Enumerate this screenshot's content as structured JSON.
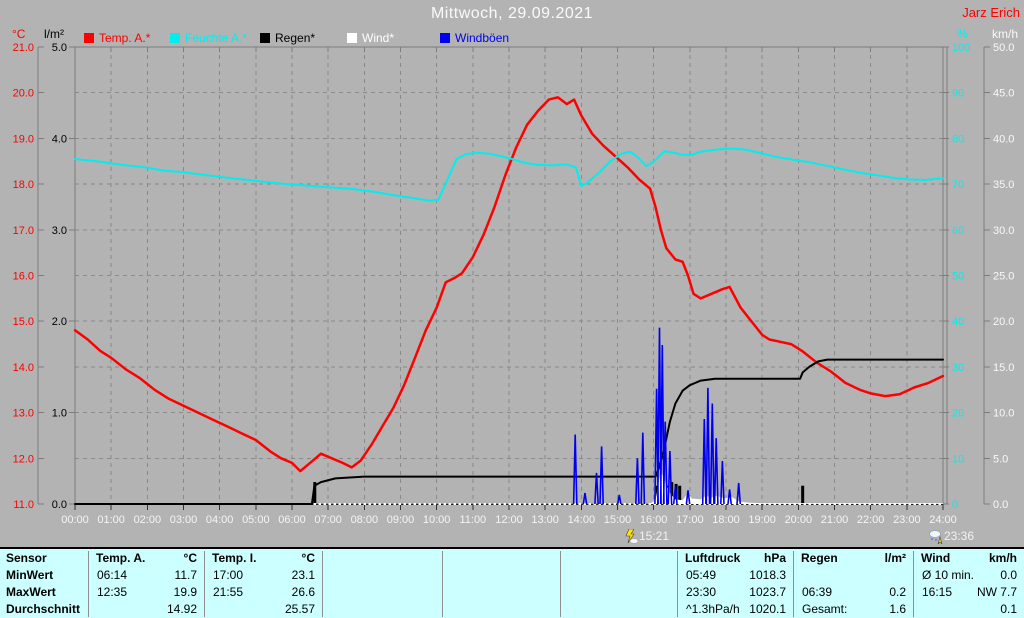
{
  "header": {
    "title": "Mittwoch, 29.09.2021",
    "author": "Jarz Erich"
  },
  "legend": {
    "left_units": [
      {
        "text": "°C",
        "color": "#ff0000"
      },
      {
        "text": "l/m²",
        "color": "#000000"
      }
    ],
    "right_units": [
      {
        "text": "%",
        "color": "#00eeee"
      },
      {
        "text": "km/h",
        "color": "#f8f8f8"
      }
    ],
    "items": [
      {
        "label": "Temp. A.*",
        "color": "#ff0000"
      },
      {
        "label": "Feuchte A.*",
        "color": "#00eeee"
      },
      {
        "label": "Regen*",
        "color": "#000000"
      },
      {
        "label": "Wind*",
        "color": "#ffffff"
      },
      {
        "label": "Windböen",
        "color": "#0000ee"
      }
    ]
  },
  "chart_data": {
    "type": "line",
    "title": "Mittwoch, 29.09.2021",
    "grid": true,
    "x_axis": {
      "unit": "hour",
      "min": 0,
      "max": 24,
      "tick_step": 1,
      "labels": [
        "00:00",
        "01:00",
        "02:00",
        "03:00",
        "04:00",
        "05:00",
        "06:00",
        "07:00",
        "08:00",
        "09:00",
        "10:00",
        "11:00",
        "12:00",
        "13:00",
        "14:00",
        "15:00",
        "16:00",
        "17:00",
        "18:00",
        "19:00",
        "20:00",
        "21:00",
        "22:00",
        "23:00",
        "24:00"
      ]
    },
    "y_axes": [
      {
        "id": "temp",
        "unit": "°C",
        "color": "#ff0000",
        "min": 11,
        "max": 21,
        "tick_step": 1,
        "side": "left"
      },
      {
        "id": "rain",
        "unit": "l/m²",
        "color": "#000000",
        "min": 0,
        "max": 5,
        "tick_step": 1,
        "side": "left"
      },
      {
        "id": "humidity",
        "unit": "%",
        "color": "#00eeee",
        "min": 0,
        "max": 100,
        "tick_step": 10,
        "side": "right"
      },
      {
        "id": "wind",
        "unit": "km/h",
        "color": "#f8f8f8",
        "min": 0,
        "max": 50,
        "tick_step": 5,
        "side": "right"
      }
    ],
    "series": [
      {
        "name": "Temp. A.*",
        "axis": "temp",
        "color": "#ff0000",
        "type": "line",
        "width": 2.5,
        "points": [
          [
            0,
            14.8
          ],
          [
            0.35,
            14.6
          ],
          [
            0.7,
            14.35
          ],
          [
            1,
            14.2
          ],
          [
            1.4,
            13.95
          ],
          [
            1.8,
            13.75
          ],
          [
            2.2,
            13.5
          ],
          [
            2.6,
            13.3
          ],
          [
            3,
            13.15
          ],
          [
            3.4,
            13.0
          ],
          [
            3.8,
            12.85
          ],
          [
            4.2,
            12.7
          ],
          [
            4.6,
            12.55
          ],
          [
            5,
            12.4
          ],
          [
            5.4,
            12.15
          ],
          [
            5.7,
            12.0
          ],
          [
            6,
            11.9
          ],
          [
            6.23,
            11.72
          ],
          [
            6.5,
            11.9
          ],
          [
            6.8,
            12.1
          ],
          [
            7.1,
            12.0
          ],
          [
            7.4,
            11.9
          ],
          [
            7.65,
            11.8
          ],
          [
            7.9,
            11.95
          ],
          [
            8.2,
            12.3
          ],
          [
            8.5,
            12.7
          ],
          [
            8.8,
            13.1
          ],
          [
            9.1,
            13.6
          ],
          [
            9.4,
            14.2
          ],
          [
            9.7,
            14.8
          ],
          [
            10,
            15.3
          ],
          [
            10.25,
            15.85
          ],
          [
            10.5,
            15.95
          ],
          [
            10.7,
            16.05
          ],
          [
            11,
            16.4
          ],
          [
            11.3,
            16.9
          ],
          [
            11.6,
            17.5
          ],
          [
            11.9,
            18.2
          ],
          [
            12.2,
            18.8
          ],
          [
            12.5,
            19.3
          ],
          [
            12.8,
            19.6
          ],
          [
            13.1,
            19.85
          ],
          [
            13.35,
            19.9
          ],
          [
            13.6,
            19.75
          ],
          [
            13.8,
            19.85
          ],
          [
            14,
            19.5
          ],
          [
            14.3,
            19.1
          ],
          [
            14.6,
            18.85
          ],
          [
            14.95,
            18.6
          ],
          [
            15.3,
            18.35
          ],
          [
            15.6,
            18.1
          ],
          [
            15.9,
            17.9
          ],
          [
            16.05,
            17.5
          ],
          [
            16.2,
            17.0
          ],
          [
            16.35,
            16.6
          ],
          [
            16.6,
            16.35
          ],
          [
            16.8,
            16.3
          ],
          [
            16.95,
            16.0
          ],
          [
            17.1,
            15.6
          ],
          [
            17.3,
            15.5
          ],
          [
            17.6,
            15.6
          ],
          [
            17.9,
            15.7
          ],
          [
            18.1,
            15.75
          ],
          [
            18.4,
            15.3
          ],
          [
            18.7,
            15.0
          ],
          [
            19,
            14.7
          ],
          [
            19.2,
            14.6
          ],
          [
            19.5,
            14.55
          ],
          [
            19.8,
            14.5
          ],
          [
            20.1,
            14.35
          ],
          [
            20.5,
            14.1
          ],
          [
            20.9,
            13.9
          ],
          [
            21.3,
            13.65
          ],
          [
            21.7,
            13.5
          ],
          [
            22,
            13.42
          ],
          [
            22.4,
            13.36
          ],
          [
            22.8,
            13.4
          ],
          [
            23.2,
            13.55
          ],
          [
            23.6,
            13.65
          ],
          [
            24,
            13.8
          ]
        ]
      },
      {
        "name": "Feuchte A.*",
        "axis": "humidity",
        "color": "#00eeee",
        "type": "line",
        "width": 2,
        "points": [
          [
            0,
            75.5
          ],
          [
            0.6,
            75.0
          ],
          [
            1.2,
            74.3
          ],
          [
            2,
            73.6
          ],
          [
            2.4,
            73.0
          ],
          [
            3,
            72.6
          ],
          [
            3.6,
            72.0
          ],
          [
            4.2,
            71.4
          ],
          [
            5,
            70.7
          ],
          [
            5.6,
            70.2
          ],
          [
            6.2,
            69.8
          ],
          [
            7,
            69.3
          ],
          [
            7.6,
            69.0
          ],
          [
            8.2,
            68.4
          ],
          [
            8.8,
            67.6
          ],
          [
            9.3,
            67.0
          ],
          [
            9.8,
            66.4
          ],
          [
            10.05,
            66.6
          ],
          [
            10.3,
            71.0
          ],
          [
            10.55,
            75.5
          ],
          [
            10.8,
            76.5
          ],
          [
            11.1,
            76.9
          ],
          [
            11.5,
            76.6
          ],
          [
            12,
            75.7
          ],
          [
            12.4,
            74.7
          ],
          [
            12.8,
            74.2
          ],
          [
            13.2,
            74.1
          ],
          [
            13.6,
            74.3
          ],
          [
            13.85,
            73.6
          ],
          [
            14.0,
            69.6
          ],
          [
            14.15,
            70.2
          ],
          [
            14.5,
            72.6
          ],
          [
            14.8,
            75.0
          ],
          [
            15.1,
            76.6
          ],
          [
            15.35,
            77.1
          ],
          [
            15.6,
            75.6
          ],
          [
            15.8,
            73.9
          ],
          [
            16.05,
            75.3
          ],
          [
            16.3,
            77.2
          ],
          [
            16.55,
            76.9
          ],
          [
            16.8,
            76.4
          ],
          [
            17.05,
            76.4
          ],
          [
            17.3,
            77.1
          ],
          [
            17.7,
            77.5
          ],
          [
            18.1,
            77.8
          ],
          [
            18.5,
            77.6
          ],
          [
            18.9,
            76.9
          ],
          [
            19.3,
            76.1
          ],
          [
            19.8,
            75.4
          ],
          [
            20.3,
            74.8
          ],
          [
            20.8,
            74.0
          ],
          [
            21.2,
            73.3
          ],
          [
            21.7,
            72.5
          ],
          [
            22.2,
            71.9
          ],
          [
            22.7,
            71.3
          ],
          [
            23.1,
            71.0
          ],
          [
            23.5,
            70.9
          ],
          [
            24,
            71.3
          ]
        ]
      },
      {
        "name": "Regen* kumuliert",
        "axis": "rain",
        "color": "#000000",
        "type": "line",
        "width": 2,
        "points": [
          [
            0,
            0
          ],
          [
            6.55,
            0
          ],
          [
            6.62,
            0.2
          ],
          [
            6.8,
            0.24
          ],
          [
            7.2,
            0.28
          ],
          [
            8,
            0.3
          ],
          [
            16.05,
            0.3
          ],
          [
            16.15,
            0.4
          ],
          [
            16.3,
            0.62
          ],
          [
            16.45,
            0.9
          ],
          [
            16.6,
            1.1
          ],
          [
            16.8,
            1.24
          ],
          [
            17,
            1.3
          ],
          [
            17.3,
            1.35
          ],
          [
            17.7,
            1.37
          ],
          [
            20.05,
            1.37
          ],
          [
            20.12,
            1.44
          ],
          [
            20.3,
            1.5
          ],
          [
            20.55,
            1.56
          ],
          [
            20.8,
            1.58
          ],
          [
            24,
            1.58
          ]
        ]
      },
      {
        "name": "Regen* Ereignisse",
        "axis": "rain",
        "color": "#000000",
        "type": "bars",
        "points": [
          [
            6.63,
            0.24
          ],
          [
            16.1,
            0.2
          ],
          [
            16.17,
            0.22
          ],
          [
            16.24,
            0.2
          ],
          [
            16.31,
            0.22
          ],
          [
            16.38,
            0.2
          ],
          [
            16.5,
            0.24
          ],
          [
            16.62,
            0.22
          ],
          [
            16.72,
            0.2
          ],
          [
            20.12,
            0.2
          ]
        ]
      },
      {
        "name": "Wind*",
        "axis": "wind",
        "color": "#ffffff",
        "type": "area",
        "start_hour": 6.6,
        "points": [
          [
            6.6,
            0.05
          ],
          [
            15.9,
            0.05
          ],
          [
            16.05,
            0.4
          ],
          [
            16.13,
            2.2
          ],
          [
            16.2,
            3.6
          ],
          [
            16.3,
            2.6
          ],
          [
            16.45,
            1.2
          ],
          [
            16.6,
            0.5
          ],
          [
            16.8,
            0.4
          ],
          [
            16.95,
            1.2
          ],
          [
            17.05,
            0.6
          ],
          [
            17.3,
            0.5
          ],
          [
            17.45,
            0.9
          ],
          [
            17.6,
            0.7
          ],
          [
            17.75,
            0.9
          ],
          [
            17.95,
            0.6
          ],
          [
            18.15,
            0.8
          ],
          [
            18.35,
            0.3
          ],
          [
            18.6,
            0.15
          ],
          [
            19,
            0.1
          ],
          [
            24,
            0.1
          ]
        ]
      },
      {
        "name": "Windböen",
        "axis": "wind",
        "color": "#0000ee",
        "type": "spikes",
        "width": 1.6,
        "points": [
          [
            13.83,
            7.6
          ],
          [
            14.1,
            1.2
          ],
          [
            14.42,
            3.4
          ],
          [
            14.56,
            6.3
          ],
          [
            15.05,
            1.0
          ],
          [
            15.55,
            5.0
          ],
          [
            15.7,
            7.8
          ],
          [
            16.08,
            12.6
          ],
          [
            16.16,
            19.3
          ],
          [
            16.24,
            17.4
          ],
          [
            16.32,
            9.0
          ],
          [
            16.45,
            5.8
          ],
          [
            16.6,
            2.0
          ],
          [
            16.95,
            1.5
          ],
          [
            17.4,
            9.3
          ],
          [
            17.5,
            12.7
          ],
          [
            17.62,
            11.0
          ],
          [
            17.73,
            7.2
          ],
          [
            17.9,
            4.7
          ],
          [
            18.1,
            1.6
          ],
          [
            18.35,
            2.3
          ]
        ]
      }
    ],
    "event_markers": [
      {
        "time": "15:21",
        "hour": 15.35,
        "icon": "lightning-rain"
      },
      {
        "time": "23:36",
        "hour": 23.6,
        "icon": "rain-cloud"
      }
    ]
  },
  "table": {
    "row_labels": [
      "Sensor",
      "MinWert",
      "MaxWert",
      "Durchschnitt"
    ],
    "groups": [
      {
        "name": "Temp. A.",
        "unit": "°C",
        "rows": [
          [
            "06:14",
            "11.7"
          ],
          [
            "12:35",
            "19.9"
          ],
          [
            "",
            "14.92"
          ]
        ]
      },
      {
        "name": "Temp. I.",
        "unit": "°C",
        "rows": [
          [
            "17:00",
            "23.1"
          ],
          [
            "21:55",
            "26.6"
          ],
          [
            "",
            "25.57"
          ]
        ]
      },
      {
        "name": "",
        "unit": "",
        "rows": [
          [
            "",
            ""
          ],
          [
            "",
            ""
          ],
          [
            "",
            ""
          ]
        ]
      },
      {
        "name": "",
        "unit": "",
        "rows": [
          [
            "",
            ""
          ],
          [
            "",
            ""
          ],
          [
            "",
            ""
          ]
        ]
      },
      {
        "name": "",
        "unit": "",
        "rows": [
          [
            "",
            ""
          ],
          [
            "",
            ""
          ],
          [
            "",
            ""
          ]
        ]
      },
      {
        "name": "Luftdruck",
        "unit": "hPa",
        "rows": [
          [
            "05:49",
            "1018.3"
          ],
          [
            "23:30",
            "1023.7"
          ],
          [
            "^1.3hPa/h",
            "1020.1"
          ]
        ]
      },
      {
        "name": "Regen",
        "unit": "l/m²",
        "rows": [
          [
            "",
            ""
          ],
          [
            "06:39",
            "0.2"
          ],
          [
            "Gesamt:",
            "1.6"
          ]
        ]
      },
      {
        "name": "Wind",
        "unit": "km/h",
        "rows": [
          [
            "Ø 10 min.",
            "0.0"
          ],
          [
            "16:15",
            "NW 7.7"
          ],
          [
            "",
            "0.1"
          ]
        ]
      }
    ]
  }
}
